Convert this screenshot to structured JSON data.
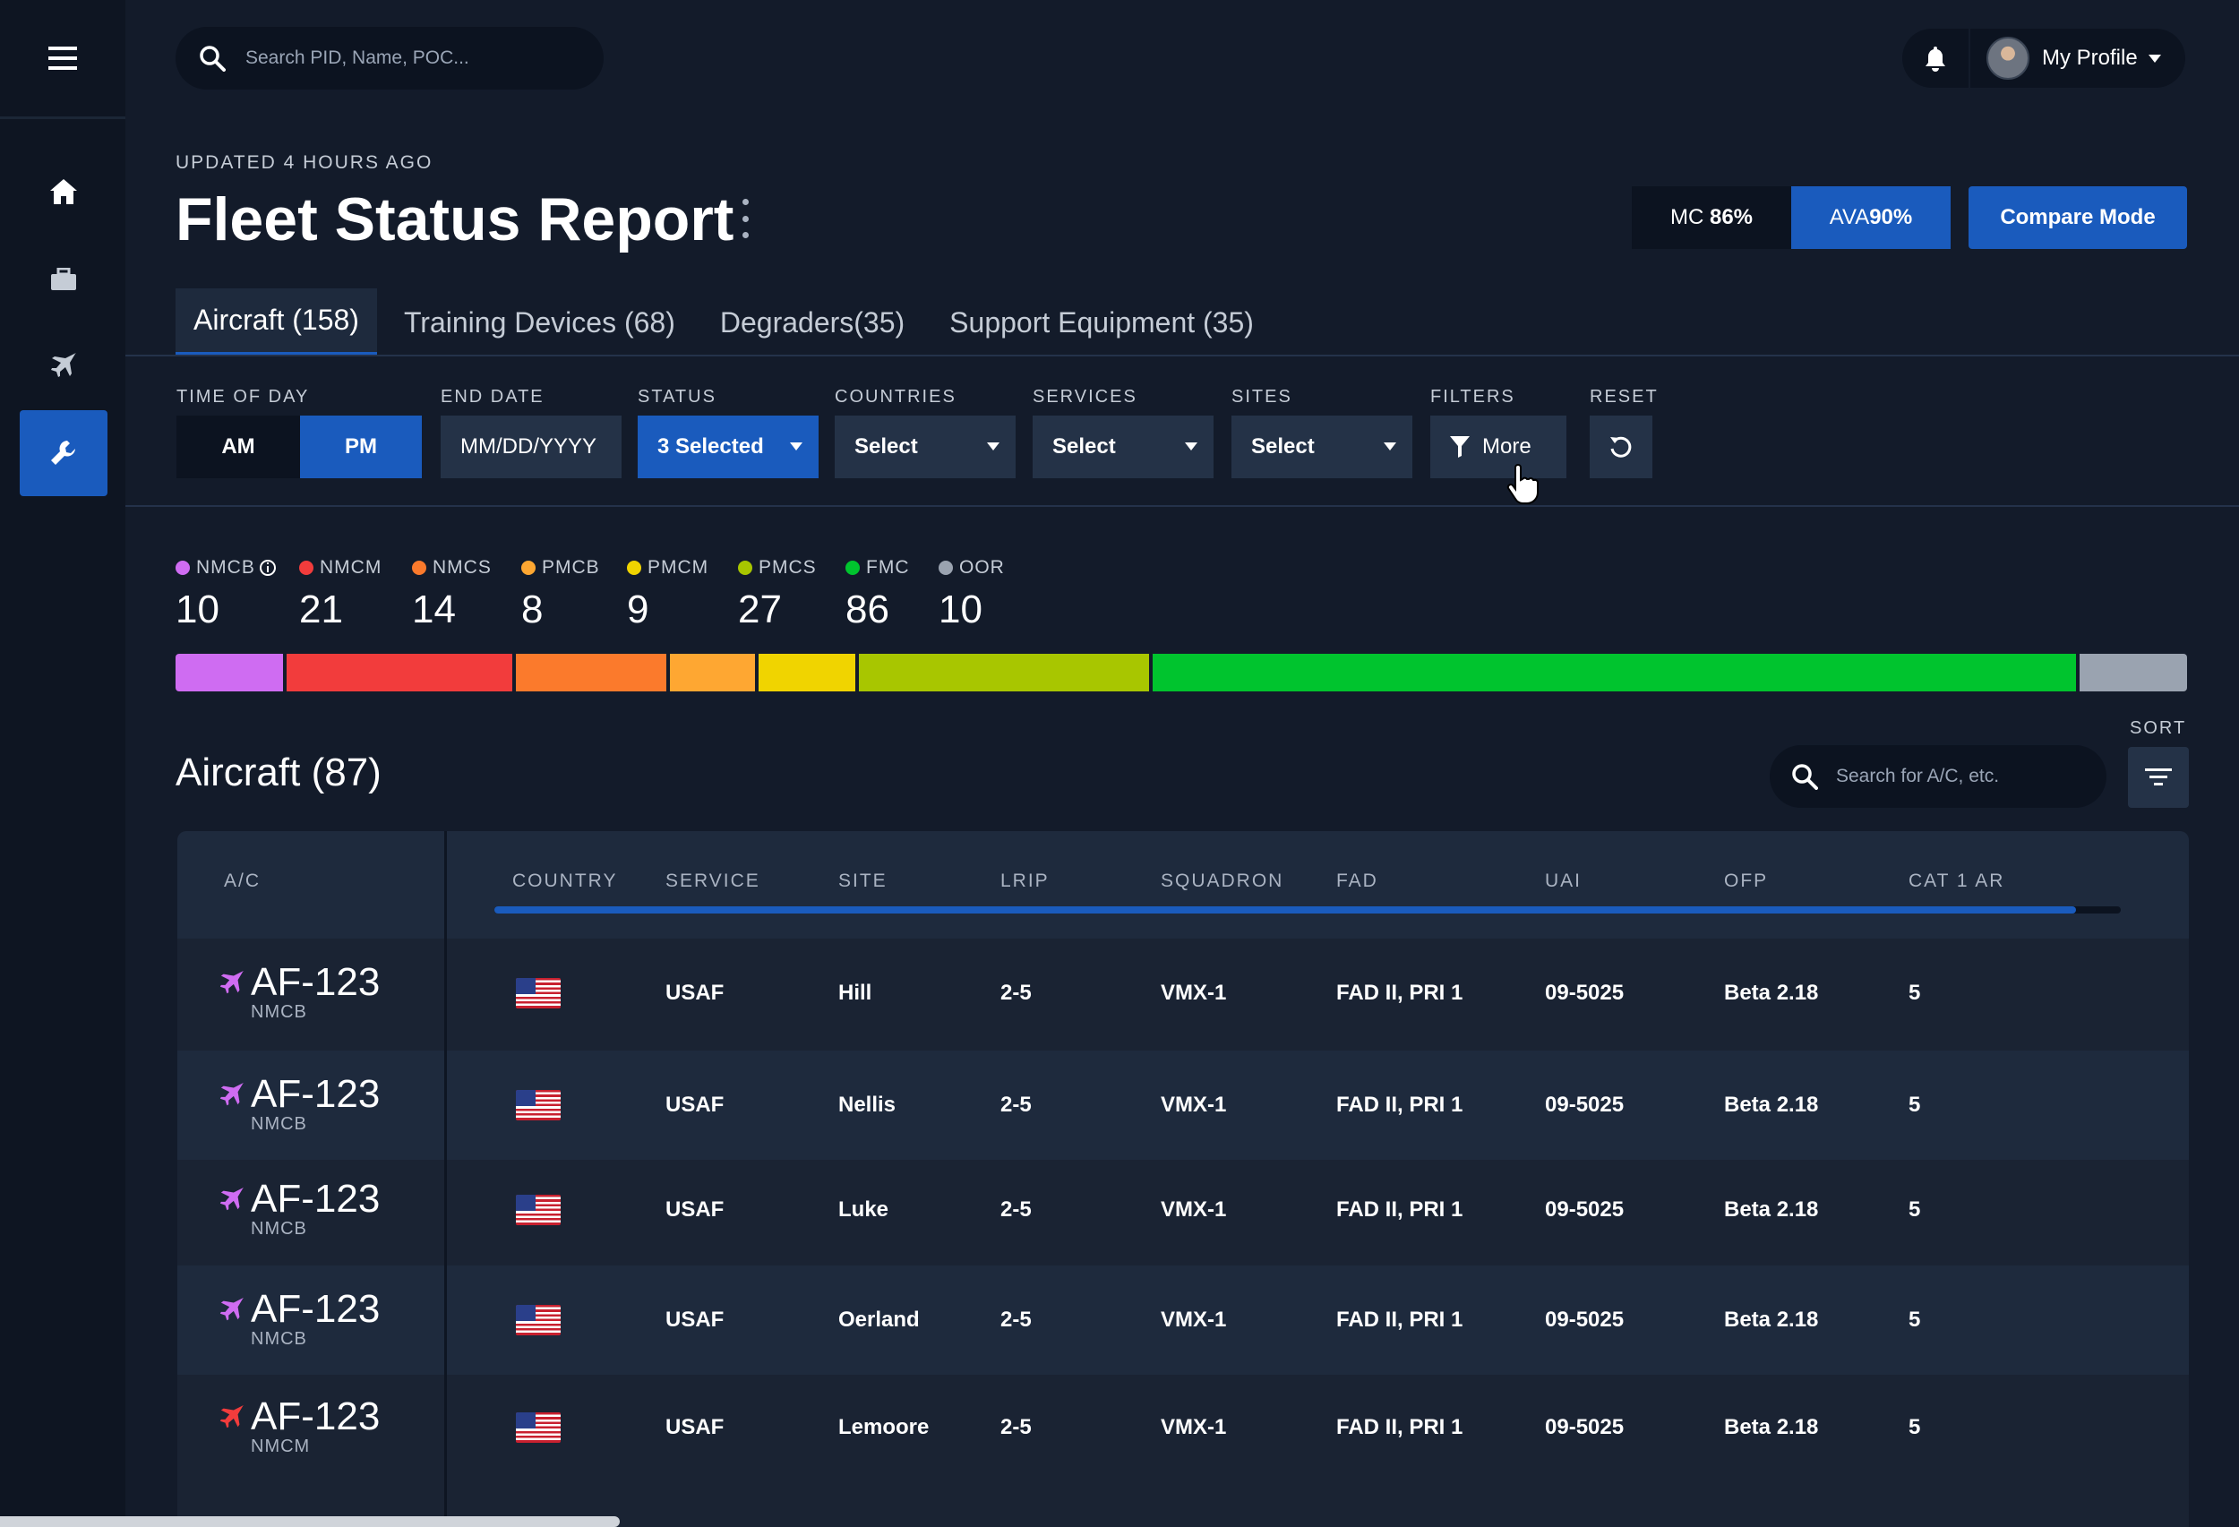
{
  "search": {
    "placeholder": "Search PID, Name, POC..."
  },
  "profile": {
    "label": "My Profile"
  },
  "header": {
    "updated": "UPDATED 4 HOURS AGO",
    "title": "Fleet Status Report",
    "mc_label": "MC",
    "mc_value": "86%",
    "ava_label": "AVA",
    "ava_value": "90%",
    "compare_label": "Compare Mode"
  },
  "tabs": [
    {
      "label": "Aircraft (158)"
    },
    {
      "label": "Training Devices (68)"
    },
    {
      "label": "Degraders(35)"
    },
    {
      "label": "Support Equipment (35)"
    }
  ],
  "filters": {
    "time_of_day": {
      "label": "TIME OF DAY",
      "am": "AM",
      "pm": "PM",
      "selected": "PM"
    },
    "end_date": {
      "label": "END DATE",
      "value": "MM/DD/YYYY"
    },
    "status": {
      "label": "STATUS",
      "value": "3 Selected"
    },
    "countries": {
      "label": "COUNTRIES",
      "value": "Select"
    },
    "services": {
      "label": "SERVICES",
      "value": "Select"
    },
    "sites": {
      "label": "SITES",
      "value": "Select"
    },
    "more": {
      "label": "FILTERS",
      "value": "More"
    },
    "reset": {
      "label": "RESET"
    }
  },
  "statuses": [
    {
      "name": "NMCB",
      "count": "10",
      "value": 10,
      "color": "#cf6cf2"
    },
    {
      "name": "NMCM",
      "count": "21",
      "value": 21,
      "color": "#f23c3c"
    },
    {
      "name": "NMCS",
      "count": "14",
      "value": 14,
      "color": "#fb7a2c"
    },
    {
      "name": "PMCB",
      "count": "8",
      "value": 8,
      "color": "#fea732"
    },
    {
      "name": "PMCM",
      "count": "9",
      "value": 9,
      "color": "#f0d400"
    },
    {
      "name": "PMCS",
      "count": "27",
      "value": 27,
      "color": "#a8c600"
    },
    {
      "name": "FMC",
      "count": "86",
      "value": 86,
      "color": "#00c42e"
    },
    {
      "name": "OOR",
      "count": "10",
      "value": 10,
      "color": "#9aa3b0"
    }
  ],
  "aircraft": {
    "title": "Aircraft (87)",
    "search_placeholder": "Search for A/C, etc.",
    "sort_label": "SORT",
    "columns": [
      "A/C",
      "COUNTRY",
      "SERVICE",
      "SITE",
      "LRIP",
      "SQUADRON",
      "FAD",
      "UAI",
      "OFP",
      "CAT 1 AR"
    ],
    "rows": [
      {
        "id": "AF-123",
        "status": "NMCB",
        "status_color": "#cf6cf2",
        "service": "USAF",
        "site": "Hill",
        "lrip": "2-5",
        "squadron": "VMX-1",
        "fad": "FAD II, PRI 1",
        "uai": "09-5025",
        "ofp": "Beta 2.18",
        "cat1": "5"
      },
      {
        "id": "AF-123",
        "status": "NMCB",
        "status_color": "#cf6cf2",
        "service": "USAF",
        "site": "Nellis",
        "lrip": "2-5",
        "squadron": "VMX-1",
        "fad": "FAD II, PRI 1",
        "uai": "09-5025",
        "ofp": "Beta 2.18",
        "cat1": "5"
      },
      {
        "id": "AF-123",
        "status": "NMCB",
        "status_color": "#cf6cf2",
        "service": "USAF",
        "site": "Luke",
        "lrip": "2-5",
        "squadron": "VMX-1",
        "fad": "FAD II, PRI 1",
        "uai": "09-5025",
        "ofp": "Beta 2.18",
        "cat1": "5"
      },
      {
        "id": "AF-123",
        "status": "NMCB",
        "status_color": "#cf6cf2",
        "service": "USAF",
        "site": "Oerland",
        "lrip": "2-5",
        "squadron": "VMX-1",
        "fad": "FAD II, PRI 1",
        "uai": "09-5025",
        "ofp": "Beta 2.18",
        "cat1": "5"
      },
      {
        "id": "AF-123",
        "status": "NMCM",
        "status_color": "#f23c3c",
        "service": "USAF",
        "site": "Lemoore",
        "lrip": "2-5",
        "squadron": "VMX-1",
        "fad": "FAD II, PRI 1",
        "uai": "09-5025",
        "ofp": "Beta 2.18",
        "cat1": "5"
      }
    ]
  }
}
